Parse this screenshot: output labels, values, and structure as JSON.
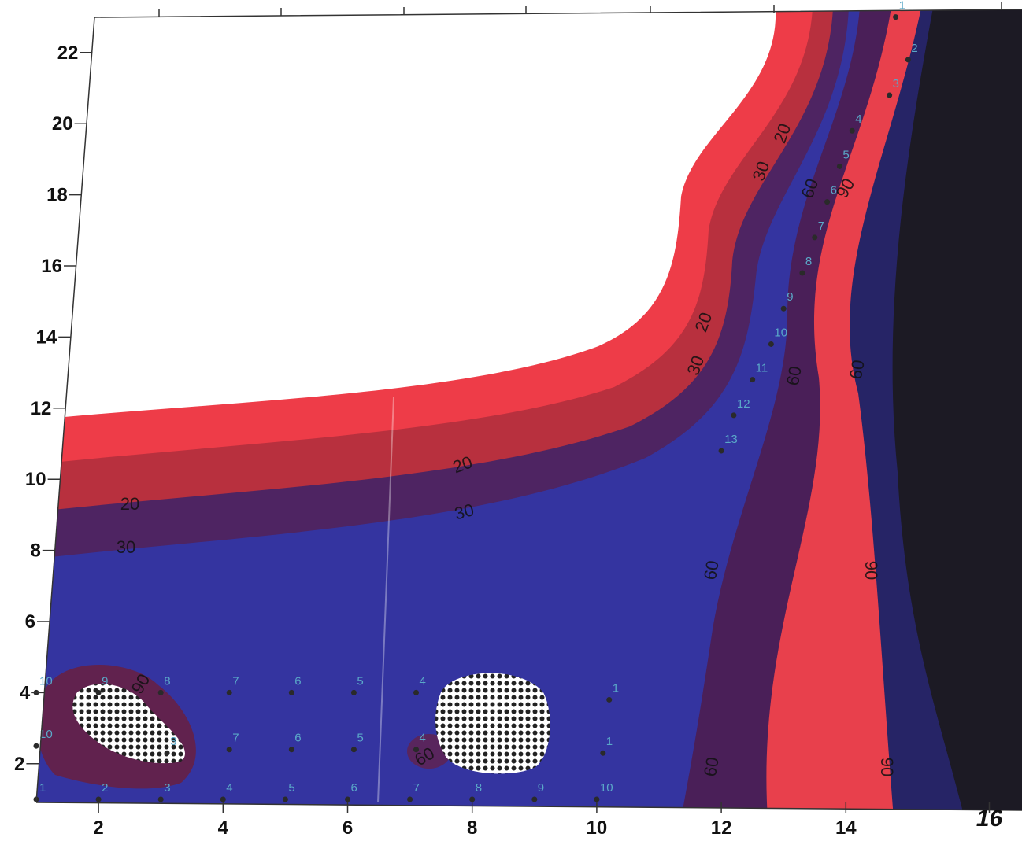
{
  "chart_data": {
    "type": "contour",
    "xlim": [
      1,
      16.4
    ],
    "ylim": [
      1,
      23
    ],
    "xticks": [
      2,
      4,
      6,
      8,
      10,
      12,
      14,
      16
    ],
    "yticks": [
      2,
      4,
      6,
      8,
      10,
      12,
      14,
      16,
      18,
      20,
      22
    ],
    "band_colors": [
      "#1c1a24",
      "#262466",
      "#e8404c",
      "#4a1f58",
      "#3434a0",
      "#4e2462",
      "#b8303e",
      "#ee3c48",
      "#ffffff"
    ],
    "contour_labels": [
      20,
      30,
      20,
      30,
      20,
      30,
      20,
      30,
      60,
      90,
      60,
      60,
      60,
      90,
      60,
      90,
      90,
      60
    ],
    "stations": {
      "color": "#2a2a2a",
      "label_color": "#5aa8c8",
      "x": [
        1,
        2,
        3,
        4,
        5,
        6,
        7,
        8,
        9,
        10,
        1,
        2,
        3,
        4.1,
        5.1,
        6.1,
        7.1,
        1,
        3.1,
        4.1,
        5.1,
        6.1,
        7.1,
        10.2,
        10.1,
        14.8,
        15,
        14.7,
        14.1,
        13.9,
        13.7,
        13.5,
        13.3,
        13,
        12.8,
        12.5,
        12.2,
        12
      ],
      "y": [
        1,
        1,
        1,
        1,
        1,
        1,
        1,
        1,
        1,
        1,
        4,
        4,
        4,
        4,
        4,
        4,
        4,
        2.5,
        2.3,
        2.4,
        2.4,
        2.4,
        2.4,
        3.8,
        2.3,
        23,
        21.8,
        20.8,
        19.8,
        18.8,
        17.8,
        16.8,
        15.8,
        14.8,
        13.8,
        12.8,
        11.8,
        10.8
      ],
      "labels": [
        1,
        2,
        3,
        4,
        5,
        6,
        7,
        8,
        9,
        10,
        10,
        9,
        8,
        7,
        6,
        5,
        4,
        10,
        3,
        7,
        6,
        5,
        4,
        1,
        1,
        1,
        2,
        3,
        4,
        5,
        6,
        7,
        8,
        9,
        10,
        11,
        12,
        13
      ]
    }
  }
}
